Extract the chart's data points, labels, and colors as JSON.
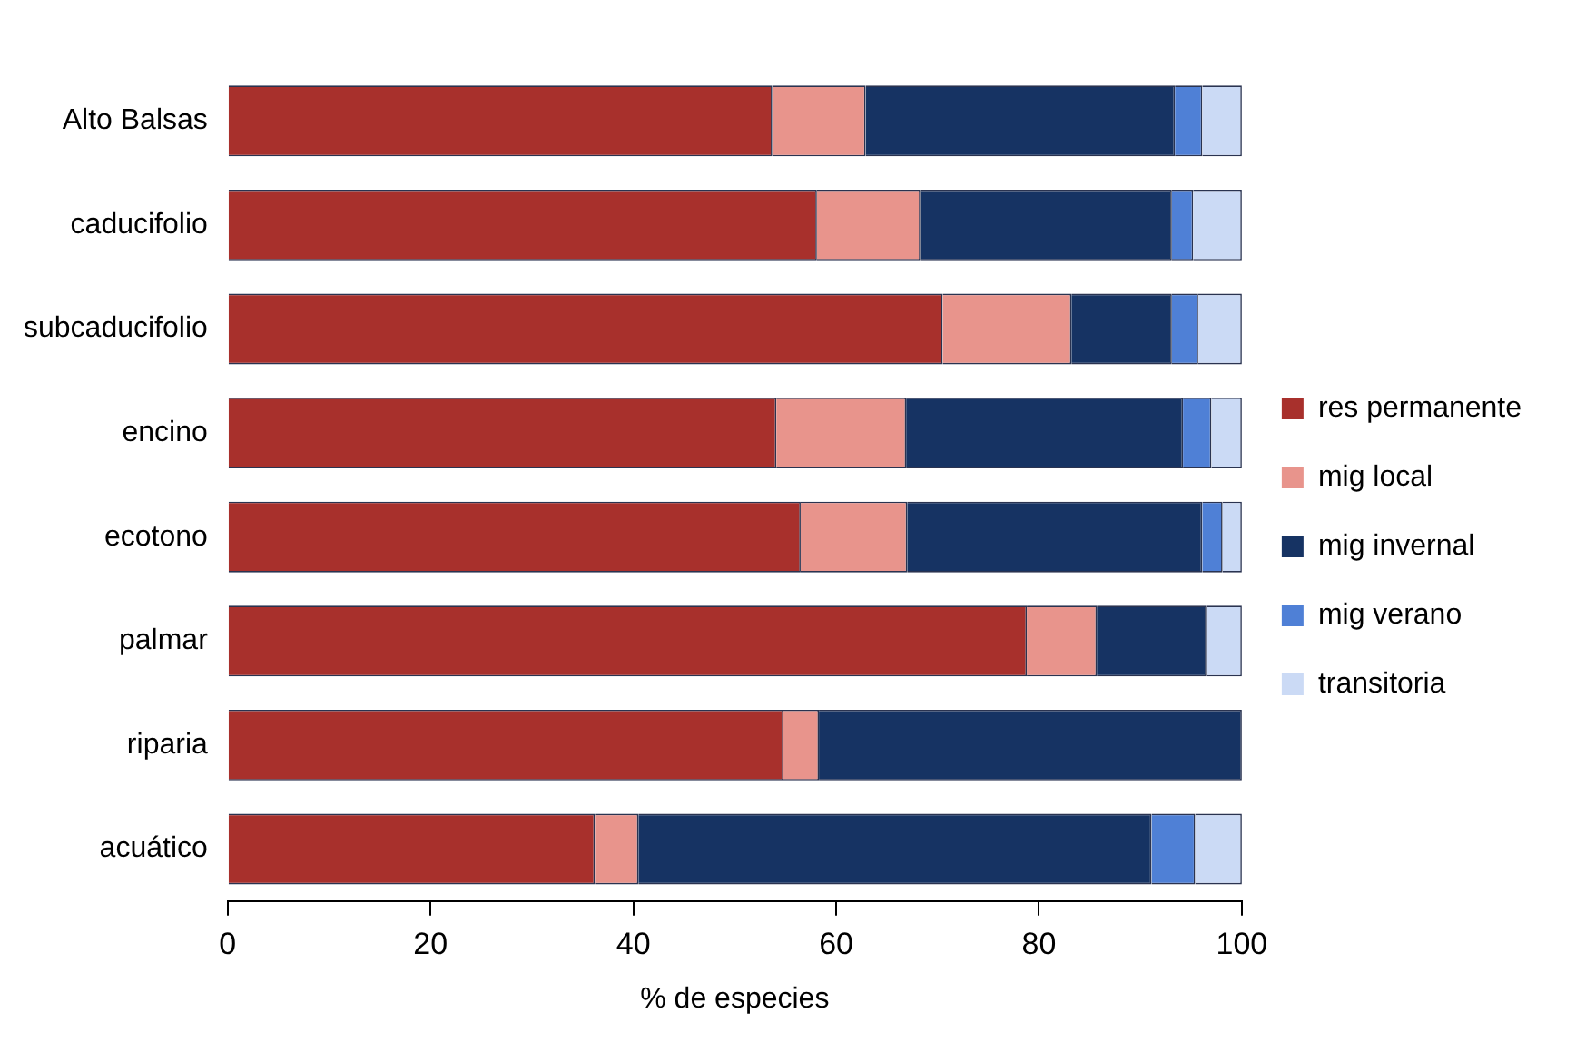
{
  "chart_data": {
    "type": "bar",
    "orientation": "horizontal",
    "stacked": true,
    "xlabel": "% de especies",
    "categories": [
      "Alto Balsas",
      "caducifolio",
      "subcaducifolio",
      "encino",
      "ecotono",
      "palmar",
      "riparia",
      "acuático"
    ],
    "series": [
      {
        "name": "res permanente",
        "color": "#a8302c",
        "values": [
          53.7,
          58.1,
          70.5,
          54.1,
          56.5,
          78.8,
          54.8,
          36.2
        ]
      },
      {
        "name": "mig local",
        "color": "#e8948c",
        "values": [
          9.2,
          10.2,
          12.7,
          12.8,
          10.5,
          6.9,
          3.5,
          4.3
        ]
      },
      {
        "name": "mig invernal",
        "color": "#163363",
        "values": [
          30.5,
          24.8,
          9.9,
          27.3,
          29.1,
          10.8,
          41.7,
          50.6
        ]
      },
      {
        "name": "mig verano",
        "color": "#4f80d6",
        "values": [
          2.7,
          2.1,
          2.6,
          2.8,
          2.0,
          0,
          0,
          4.3
        ]
      },
      {
        "name": "transitoria",
        "color": "#cbdaf5",
        "values": [
          3.9,
          4.8,
          4.3,
          3.0,
          1.9,
          3.5,
          0,
          4.6
        ]
      }
    ],
    "xlim": [
      0,
      100
    ],
    "xticks": [
      0,
      20,
      40,
      60,
      80,
      100
    ],
    "grid": false,
    "legend": "right"
  }
}
